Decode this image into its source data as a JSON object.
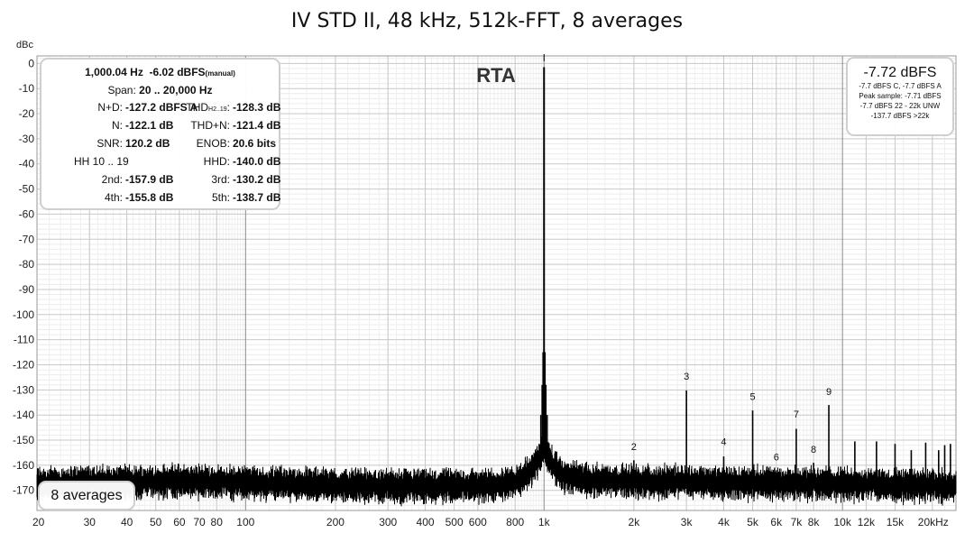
{
  "chart_data": {
    "type": "line",
    "title": "IV STD II, 48 kHz, 512k-FFT, 8 averages",
    "ylabel": "dBc",
    "xlabel": "",
    "xscale": "log",
    "xlim": [
      20,
      24000
    ],
    "ylim": [
      -178,
      3
    ],
    "grid": true,
    "x_ticks": [
      {
        "v": 20,
        "t": "20"
      },
      {
        "v": 30,
        "t": "30"
      },
      {
        "v": 40,
        "t": "40"
      },
      {
        "v": 50,
        "t": "50"
      },
      {
        "v": 60,
        "t": "60"
      },
      {
        "v": 70,
        "t": "70"
      },
      {
        "v": 80,
        "t": "80"
      },
      {
        "v": 100,
        "t": "100"
      },
      {
        "v": 200,
        "t": "200"
      },
      {
        "v": 300,
        "t": "300"
      },
      {
        "v": 400,
        "t": "400"
      },
      {
        "v": 500,
        "t": "500"
      },
      {
        "v": 600,
        "t": "600"
      },
      {
        "v": 800,
        "t": "800"
      },
      {
        "v": 1000,
        "t": "1k"
      },
      {
        "v": 2000,
        "t": "2k"
      },
      {
        "v": 3000,
        "t": "3k"
      },
      {
        "v": 4000,
        "t": "4k"
      },
      {
        "v": 5000,
        "t": "5k"
      },
      {
        "v": 6000,
        "t": "6k"
      },
      {
        "v": 7000,
        "t": "7k"
      },
      {
        "v": 8000,
        "t": "8k"
      },
      {
        "v": 10000,
        "t": "10k"
      },
      {
        "v": 12000,
        "t": "12k"
      },
      {
        "v": 15000,
        "t": "15k"
      },
      {
        "v": 20000,
        "t": "20kHz"
      }
    ],
    "y_ticks": [
      0,
      -10,
      -20,
      -30,
      -40,
      -50,
      -60,
      -70,
      -80,
      -90,
      -100,
      -110,
      -120,
      -130,
      -140,
      -150,
      -160,
      -170
    ],
    "series": [
      {
        "type": "noise_floor",
        "color": "#000000",
        "x": [
          20,
          30,
          60,
          100,
          200,
          400,
          700,
          850,
          950,
          1000,
          1050,
          1150,
          1300,
          2000,
          5000,
          10000,
          15000,
          24000
        ],
        "y": [
          -167,
          -166.5,
          -166,
          -166.5,
          -167.5,
          -168,
          -167.5,
          -165,
          -158,
          -152,
          -158,
          -163.5,
          -165,
          -166,
          -166.5,
          -167,
          -167.5,
          -168
        ]
      },
      {
        "type": "peaks",
        "color": "#000000",
        "x": [
          29.5,
          59.6,
          100,
          919,
          964,
          1000,
          1036,
          1084,
          2000,
          3000,
          4000,
          5000,
          6000,
          7000,
          8000,
          9000,
          11000,
          13000,
          15000,
          17000,
          19000,
          21000,
          22000,
          23000
        ],
        "y": [
          -160.5,
          -159.5,
          -164.5,
          -157.5,
          -152,
          -1.5,
          -153,
          -158.5,
          -158,
          -130.2,
          -156.5,
          -138.2,
          -162,
          -145.5,
          -159,
          -136,
          -150.5,
          -150.5,
          -151.5,
          -154,
          -151,
          -154,
          -152,
          -151.5
        ]
      }
    ],
    "annotations": [
      {
        "text": "2",
        "x": 2000,
        "y": -154
      },
      {
        "text": "3",
        "x": 3000,
        "y": -126
      },
      {
        "text": "4",
        "x": 4000,
        "y": -152
      },
      {
        "text": "5",
        "x": 5000,
        "y": -134
      },
      {
        "text": "6",
        "x": 6000,
        "y": -158
      },
      {
        "text": "7",
        "x": 7000,
        "y": -141
      },
      {
        "text": "8",
        "x": 8000,
        "y": -155
      },
      {
        "text": "9",
        "x": 9000,
        "y": -132
      }
    ],
    "rta_label": "RTA"
  },
  "stats_panel": {
    "freq": "1,000.04 Hz",
    "level": "-6.02 dBFS",
    "level_note": "(manual)",
    "span_label": "Span:",
    "span_value": "20 .. 20,000 Hz",
    "nd_label": "N+D:",
    "nd_value": "-127.2 dBFS A",
    "thd_label_main": "THD",
    "thd_label_sub": "H2..19",
    "thd_label_end": ":",
    "thd_value": "-128.3 dB",
    "n_label": "N:",
    "n_value": "-122.1 dB",
    "thdn_label": "THD+N:",
    "thdn_value": "-121.4 dB",
    "snr_label": "SNR:",
    "snr_value": "120.2 dB",
    "enob_label": "ENOB:",
    "enob_value": "20.6 bits",
    "hh_label": "HH 10 .. 19",
    "hhd_label": "HHD:",
    "hhd_value": "-140.0 dB",
    "h2_label": "2nd:",
    "h2_value": "-157.9 dB",
    "h3_label": "3rd:",
    "h3_value": "-130.2 dB",
    "h4_label": "4th:",
    "h4_value": "-155.8 dB",
    "h5_label": "5th:",
    "h5_value": "-138.7 dB"
  },
  "level_panel": {
    "main": "-7.72 dBFS",
    "line1": "-7.7 dBFS C, -7.7 dBFS A",
    "line2": "Peak sample: -7.71 dBFS",
    "line3": "-7.7 dBFS 22 - 22k UNW",
    "line4": "-137.7 dBFS >22k"
  },
  "averages_label": "8 averages"
}
